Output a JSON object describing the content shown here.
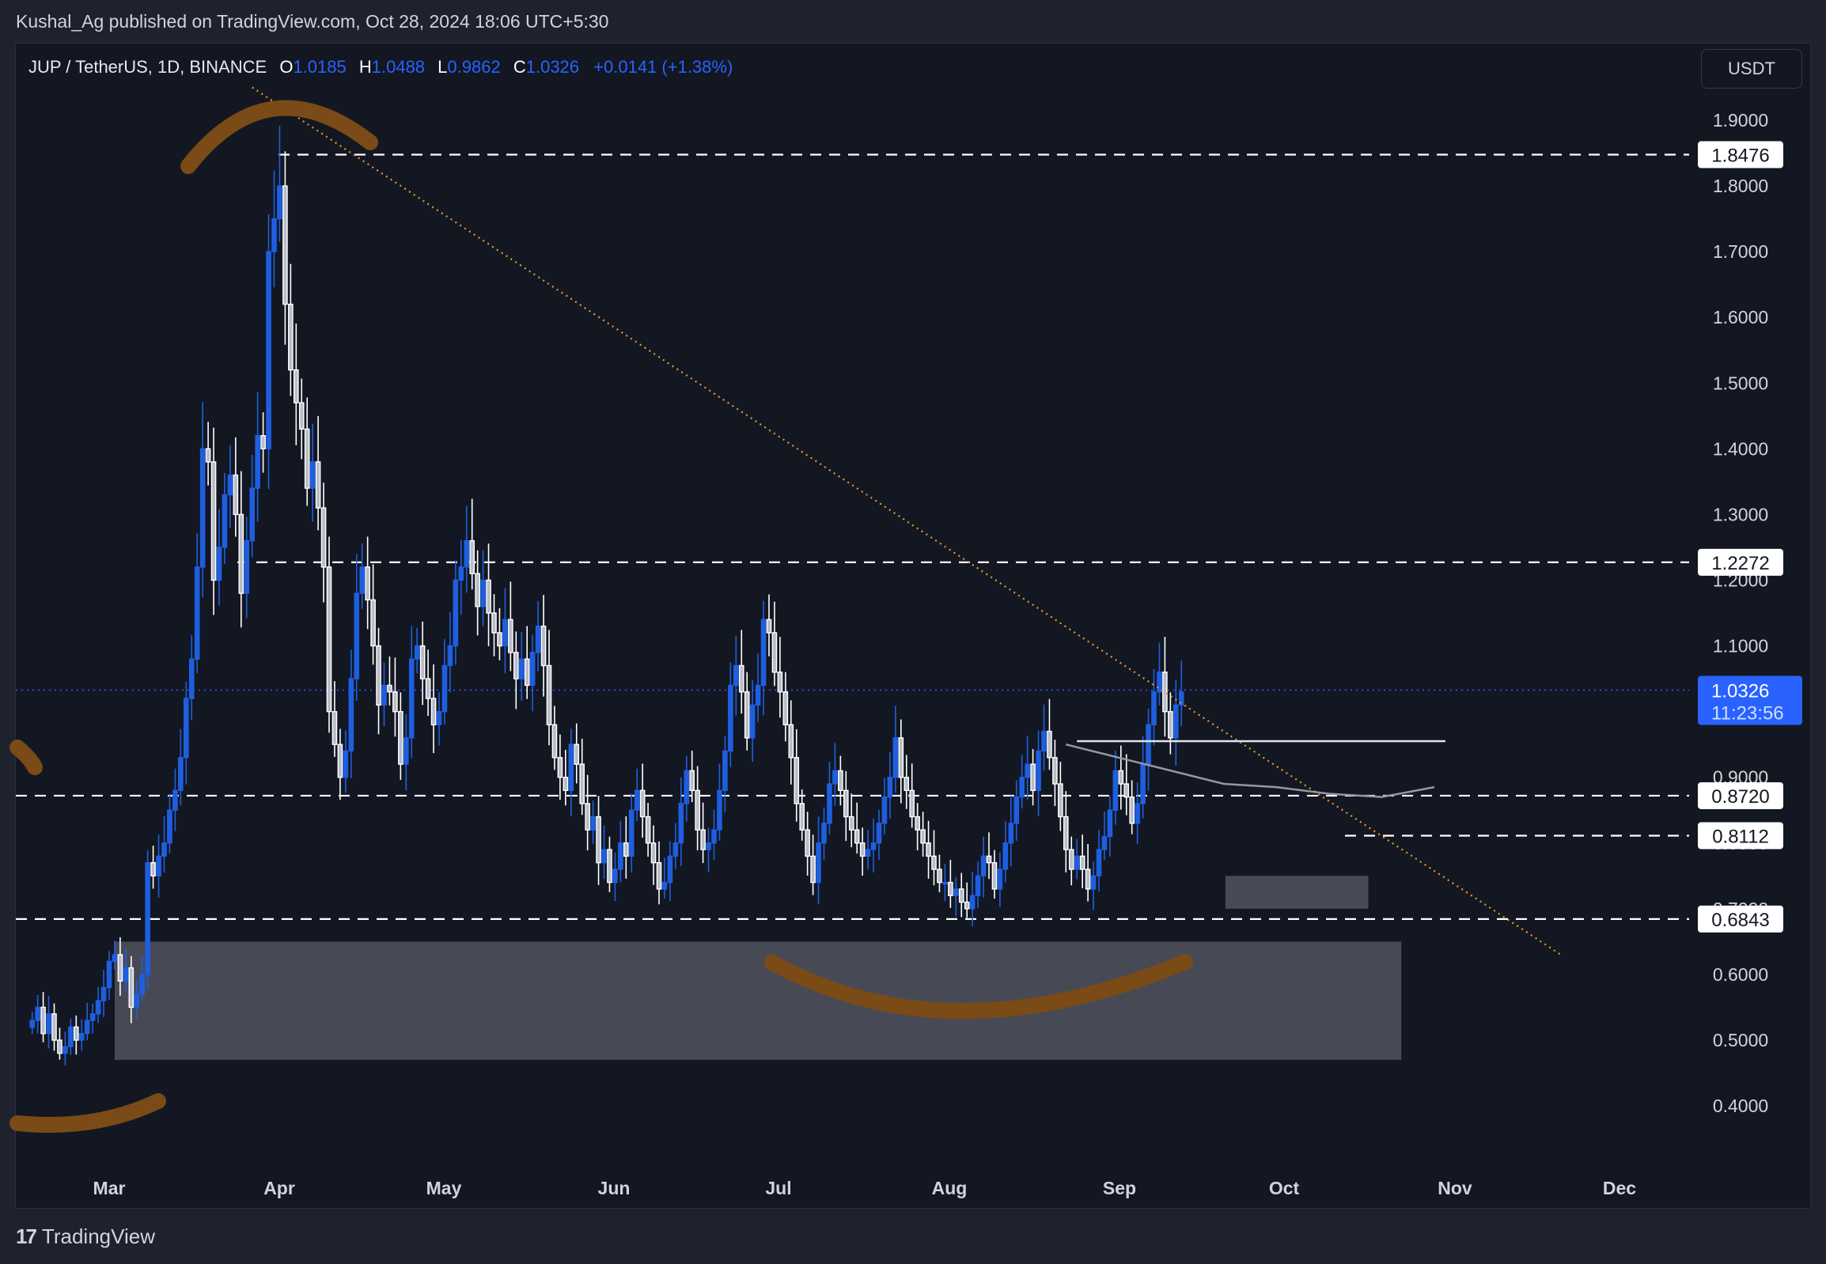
{
  "header": {
    "published": "Kushal_Ag published on TradingView.com, Oct 28, 2024 18:06 UTC+5:30"
  },
  "legend": {
    "symbol": "JUP / TetherUS, 1D, BINANCE",
    "open_label": "O",
    "open": "1.0185",
    "high_label": "H",
    "high": "1.0488",
    "low_label": "L",
    "low": "0.9862",
    "close_label": "C",
    "close": "1.0326",
    "change": "+0.0141 (+1.38%)"
  },
  "currency_button": "USDT",
  "footer": {
    "brand": "TradingView",
    "logo": "17"
  },
  "colors": {
    "background": "#131722",
    "up_candle": "#1e5fe0",
    "down_candle": "#ffffff",
    "trendline": "#e89b2c",
    "annotation_stroke": "#7a4a17",
    "zone_fill": "#4a4d58",
    "last_price_badge": "#2962ff"
  },
  "chart_data": {
    "type": "candlestick",
    "title": "JUP / TetherUS, 1D, BINANCE",
    "ylabel": "USDT",
    "ylim": [
      0.35,
      1.98
    ],
    "grid": false,
    "price_ticks": [
      "1.9000",
      "1.8000",
      "1.7000",
      "1.6000",
      "1.5000",
      "1.4000",
      "1.3000",
      "1.2000",
      "1.1000",
      "0.9000",
      "0.8000",
      "0.7000",
      "0.6000",
      "0.5000",
      "0.4000"
    ],
    "time_ticks": [
      "Mar",
      "Apr",
      "May",
      "Jun",
      "Jul",
      "Aug",
      "Sep",
      "Oct",
      "Nov",
      "Dec"
    ],
    "last_price": {
      "value": "1.0326",
      "countdown": "11:23:56"
    },
    "horizontal_levels": [
      {
        "value": "1.8476",
        "style": "dashed"
      },
      {
        "value": "1.2272",
        "style": "dashed"
      },
      {
        "value": "0.8720",
        "style": "dashed"
      },
      {
        "value": "0.8112",
        "style": "dashed"
      },
      {
        "value": "0.6843",
        "style": "dashed"
      }
    ],
    "resistance_line": {
      "value": 0.955,
      "from": "Aug 24",
      "to": "Oct 30"
    },
    "moving_average_segment": {
      "from": "Aug 22",
      "to": "Oct 28",
      "values": [
        0.95,
        0.93,
        0.91,
        0.89,
        0.885,
        0.875,
        0.87,
        0.885
      ]
    },
    "trendline": {
      "from": {
        "date": "Mar 27",
        "price": 1.95
      },
      "to": {
        "date": "Nov 20",
        "price": 0.63
      },
      "style": "dotted"
    },
    "zones": [
      {
        "name": "demand-zone-large",
        "from": "Mar 2",
        "to": "Oct 22",
        "top": 0.65,
        "bottom": 0.47
      },
      {
        "name": "demand-zone-small",
        "from": "Sep 20",
        "to": "Oct 16",
        "top": 0.75,
        "bottom": 0.7
      }
    ],
    "start_date": "Feb 16",
    "closes": [
      0.53,
      0.55,
      0.51,
      0.54,
      0.5,
      0.48,
      0.49,
      0.52,
      0.5,
      0.51,
      0.53,
      0.54,
      0.56,
      0.58,
      0.62,
      0.63,
      0.59,
      0.61,
      0.55,
      0.57,
      0.6,
      0.77,
      0.75,
      0.78,
      0.8,
      0.85,
      0.88,
      0.93,
      1.02,
      1.08,
      1.22,
      1.4,
      1.38,
      1.2,
      1.25,
      1.33,
      1.36,
      1.3,
      1.18,
      1.26,
      1.34,
      1.42,
      1.4,
      1.7,
      1.75,
      1.8,
      1.62,
      1.52,
      1.47,
      1.43,
      1.34,
      1.38,
      1.31,
      1.22,
      1.0,
      0.95,
      0.9,
      0.94,
      1.05,
      1.18,
      1.22,
      1.17,
      1.1,
      1.01,
      1.04,
      1.03,
      1.0,
      0.92,
      0.96,
      1.08,
      1.1,
      1.05,
      1.02,
      0.98,
      1.0,
      1.07,
      1.1,
      1.2,
      1.22,
      1.26,
      1.21,
      1.16,
      1.2,
      1.15,
      1.12,
      1.1,
      1.14,
      1.09,
      1.05,
      1.08,
      1.04,
      1.09,
      1.13,
      1.07,
      0.98,
      0.93,
      0.9,
      0.88,
      0.95,
      0.92,
      0.86,
      0.82,
      0.84,
      0.77,
      0.79,
      0.74,
      0.76,
      0.8,
      0.78,
      0.85,
      0.88,
      0.84,
      0.8,
      0.77,
      0.73,
      0.74,
      0.78,
      0.8,
      0.86,
      0.91,
      0.88,
      0.82,
      0.79,
      0.8,
      0.82,
      0.88,
      0.94,
      1.04,
      1.07,
      1.03,
      0.96,
      1.01,
      1.04,
      1.14,
      1.12,
      1.06,
      1.03,
      0.98,
      0.93,
      0.86,
      0.82,
      0.78,
      0.74,
      0.8,
      0.83,
      0.89,
      0.91,
      0.88,
      0.84,
      0.82,
      0.8,
      0.78,
      0.79,
      0.8,
      0.83,
      0.87,
      0.9,
      0.96,
      0.9,
      0.88,
      0.84,
      0.82,
      0.8,
      0.78,
      0.76,
      0.74,
      0.74,
      0.72,
      0.73,
      0.71,
      0.7,
      0.72,
      0.75,
      0.78,
      0.77,
      0.73,
      0.76,
      0.8,
      0.83,
      0.87,
      0.9,
      0.92,
      0.88,
      0.94,
      0.97,
      0.93,
      0.89,
      0.84,
      0.79,
      0.76,
      0.78,
      0.76,
      0.73,
      0.75,
      0.79,
      0.81,
      0.85,
      0.91,
      0.89,
      0.87,
      0.83,
      0.86,
      0.92,
      0.98,
      1.03,
      1.06,
      1.0,
      0.96,
      1.01,
      1.03
    ]
  }
}
